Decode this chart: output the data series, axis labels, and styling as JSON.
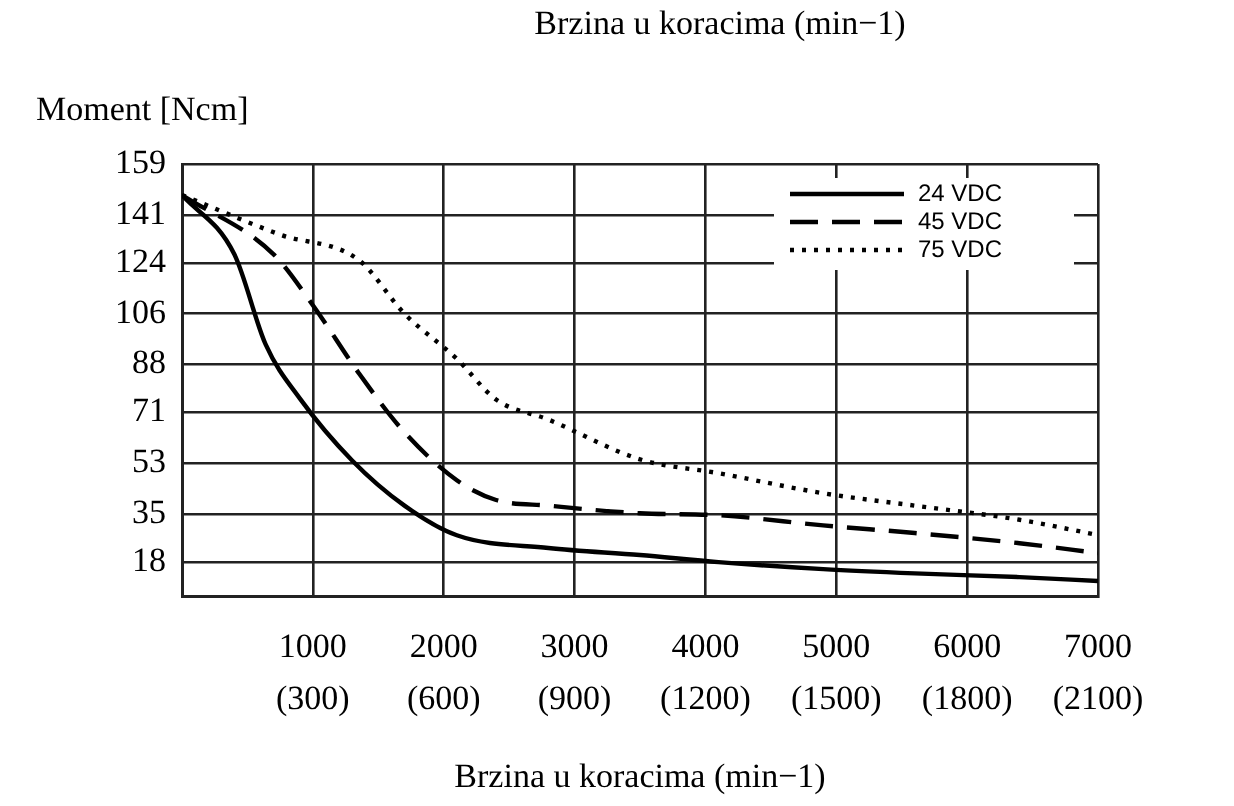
{
  "chart_data": {
    "type": "line",
    "title": "Brzina u koracima (min−1)",
    "ylabel": "Moment [Ncm]",
    "xlabel": "Brzina u koracima (min−1)",
    "xlim": [
      0,
      7000
    ],
    "xticks": [
      1000,
      2000,
      3000,
      4000,
      5000,
      6000,
      7000
    ],
    "x2lim": [
      0,
      2100
    ],
    "x2ticks": [
      {
        "value": 300,
        "label": "(300)"
      },
      {
        "value": 600,
        "label": "(600)"
      },
      {
        "value": 900,
        "label": "(900)"
      },
      {
        "value": 1200,
        "label": "(1200)"
      },
      {
        "value": 1500,
        "label": "(1500)"
      },
      {
        "value": 1800,
        "label": "(1800)"
      },
      {
        "value": 2100,
        "label": "(2100)"
      }
    ],
    "ylim": [
      6,
      159
    ],
    "yticks": [
      18,
      35,
      53,
      71,
      88,
      106,
      124,
      141,
      159
    ],
    "grid": true,
    "legend": "top right",
    "marker": "none",
    "series": [
      {
        "name": "24 VDC",
        "color": "#000000",
        "line_style": "solid",
        "x": [
          0,
          400,
          640,
          900,
          1300,
          1700,
          2100,
          2800,
          3500,
          4100,
          4900,
          5600,
          6400,
          7000
        ],
        "values": [
          148,
          127,
          95,
          76,
          54,
          38,
          27.5,
          23,
          20.5,
          18,
          15.5,
          14,
          12.7,
          11.3
        ]
      },
      {
        "name": "45 VDC",
        "color": "#000000",
        "line_style": "dashed",
        "x": [
          0,
          700,
          1000,
          1350,
          1700,
          2100,
          2400,
          2800,
          3500,
          4100,
          4900,
          5600,
          6400,
          7000
        ],
        "values": [
          148,
          127,
          109,
          85,
          64,
          47,
          40,
          38,
          35.3,
          34.6,
          31,
          28.3,
          24.7,
          21.2
        ]
      },
      {
        "name": "75 VDC",
        "color": "#000000",
        "line_style": "dotted",
        "x": [
          0,
          750,
          1350,
          1700,
          2100,
          2400,
          2800,
          3500,
          4100,
          4900,
          5600,
          6400,
          7000
        ],
        "values": [
          148,
          134,
          125,
          106,
          90,
          75.6,
          68.5,
          54.4,
          49.5,
          42.4,
          38,
          33,
          27.6
        ]
      }
    ]
  }
}
